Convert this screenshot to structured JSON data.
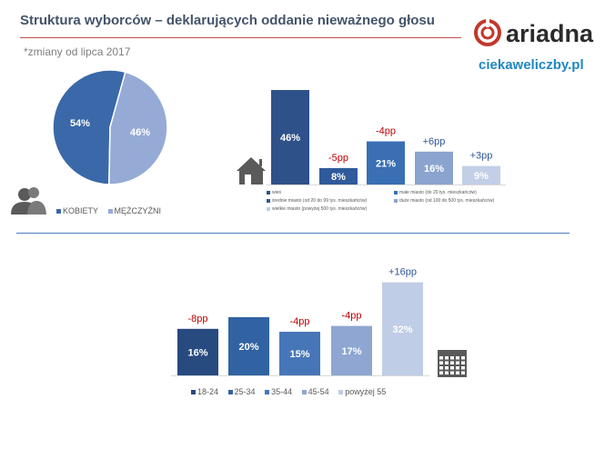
{
  "header": {
    "title": "Struktura wyborców – deklarujących oddanie nieważnego głosu",
    "subtitle": "*zmiany od lipca 2017",
    "logo_text": "ariadna",
    "site": "ciekaweliczby.pl"
  },
  "icons": [
    "people-icon",
    "house-icon",
    "calendar-icon"
  ],
  "colors": {
    "title": "#44546a",
    "accent_red": "#c0504d",
    "accent_blue": "#4a7ebb",
    "site_link": "#1f87c4",
    "change_negative": "#c00000",
    "change_positive": "#2e5597"
  },
  "chart_data": [
    {
      "type": "pie",
      "categories": [
        "KOBIETY",
        "MĘŻCZYŹNI"
      ],
      "values": [
        54,
        46
      ],
      "value_labels": [
        "54%",
        "46%"
      ],
      "colors": [
        "#3a68a8",
        "#95abd5"
      ],
      "legend_position": "bottom"
    },
    {
      "type": "bar",
      "categories": [
        "wieś",
        "średnie miasto (od 20 do 99 tys. mieszkańców)",
        "małe miasto (do 20 tys. mieszkańców)",
        "duże miasto (od 100 do 500 tys. mieszkańców)",
        "wielkie miasto (powyżej 500 tys. mieszkańców)"
      ],
      "values": [
        46,
        8,
        21,
        16,
        9
      ],
      "value_labels": [
        "46%",
        "8%",
        "21%",
        "16%",
        "9%"
      ],
      "bar_order": [
        0,
        1,
        2,
        3,
        4
      ],
      "changes": [
        "",
        "-5pp",
        "-4pp",
        "+6pp",
        "+3pp"
      ],
      "colors": [
        "#2f5189",
        "#2f5a9b",
        "#3a6fb3",
        "#8aa4cf",
        "#c2cfe6"
      ],
      "legend_position": "bottom",
      "grid": false
    },
    {
      "type": "bar",
      "categories": [
        "18-24",
        "25-34",
        "35-44",
        "45-54",
        "powyżej 55"
      ],
      "values": [
        16,
        20,
        15,
        17,
        32
      ],
      "value_labels": [
        "16%",
        "20%",
        "15%",
        "17%",
        "32%"
      ],
      "changes": [
        "-8pp",
        "",
        "-4pp",
        "-4pp",
        "+16pp"
      ],
      "colors": [
        "#274a7f",
        "#3163a2",
        "#4776b8",
        "#8ea6d1",
        "#c0cde6"
      ],
      "legend_position": "bottom",
      "grid": false
    }
  ]
}
